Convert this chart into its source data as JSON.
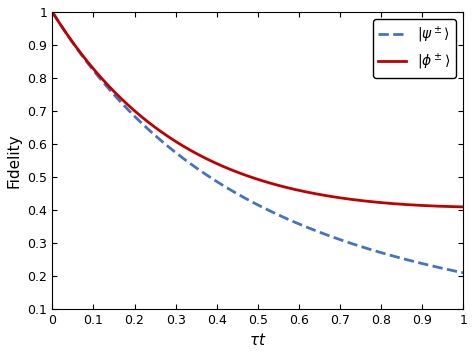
{
  "xlabel": "$\\tau t$",
  "ylabel": "Fidelity",
  "xlim": [
    0,
    1
  ],
  "ylim": [
    0.1,
    1.0
  ],
  "xticks": [
    0,
    0.1,
    0.2,
    0.3,
    0.4,
    0.5,
    0.6,
    0.7,
    0.8,
    0.9,
    1.0
  ],
  "yticks": [
    0.1,
    0.2,
    0.3,
    0.4,
    0.5,
    0.6,
    0.7,
    0.8,
    0.9,
    1.0
  ],
  "legend_psi_label": "$|\\psi^\\pm\\rangle$",
  "legend_phi_label": "$|\\phi^\\pm\\rangle$",
  "line_psi_color": "#4472C4",
  "line_phi_color": "#C00000",
  "line_psi_style": "--",
  "line_phi_style": "-",
  "line_width": 2.0,
  "n_points": 500,
  "background_color": "#ffffff",
  "legend_loc": "upper right"
}
